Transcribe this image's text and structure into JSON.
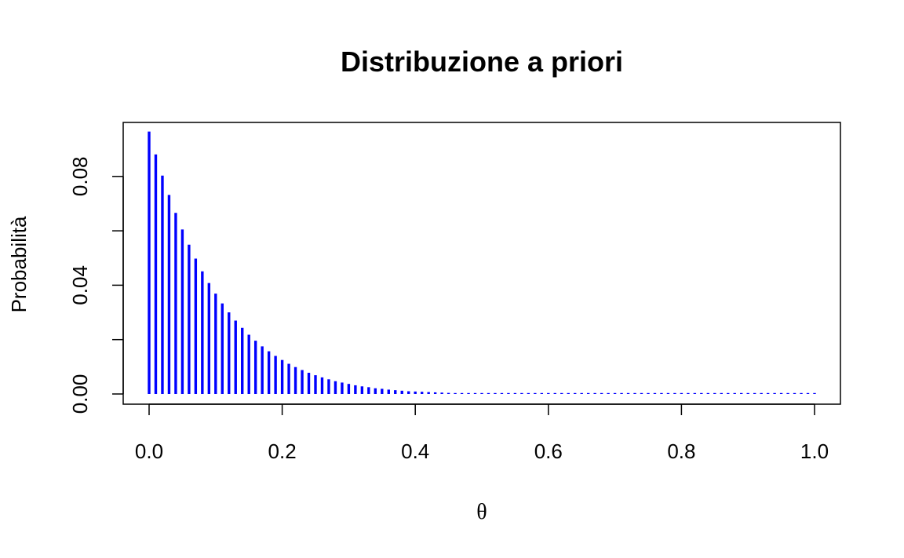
{
  "chart_data": {
    "type": "bar",
    "title": "Distribuzione a priori",
    "xlabel": "θ",
    "ylabel": "Probabilità",
    "xlim": [
      0,
      1
    ],
    "ylim": [
      0,
      0.0968
    ],
    "x_ticks": [
      0.0,
      0.2,
      0.4,
      0.6,
      0.8,
      1.0
    ],
    "x_tick_labels": [
      "0.0",
      "0.2",
      "0.4",
      "0.6",
      "0.8",
      "1.0"
    ],
    "y_ticks": [
      0.0,
      0.02,
      0.04,
      0.06,
      0.08
    ],
    "y_tick_labels": [
      "0.00",
      "",
      "0.04",
      "",
      "0.08"
    ],
    "grid": false,
    "color": "#0000ff",
    "x": [
      0.0,
      0.01,
      0.02,
      0.03,
      0.04,
      0.05,
      0.06,
      0.07,
      0.08,
      0.09,
      0.1,
      0.11,
      0.12,
      0.13,
      0.14,
      0.15,
      0.16,
      0.17,
      0.18,
      0.19,
      0.2,
      0.21,
      0.22,
      0.23,
      0.24,
      0.25,
      0.26,
      0.27,
      0.28,
      0.29,
      0.3,
      0.31,
      0.32,
      0.33,
      0.34,
      0.35,
      0.36,
      0.37,
      0.38,
      0.39,
      0.4,
      0.41,
      0.42,
      0.43,
      0.44,
      0.45,
      0.46,
      0.47,
      0.48,
      0.49,
      0.5,
      0.51,
      0.52,
      0.53,
      0.54,
      0.55,
      0.56,
      0.57,
      0.58,
      0.59,
      0.6,
      0.61,
      0.62,
      0.63,
      0.64,
      0.65,
      0.66,
      0.67,
      0.68,
      0.69,
      0.7,
      0.71,
      0.72,
      0.73,
      0.74,
      0.75,
      0.76,
      0.77,
      0.78,
      0.79,
      0.8,
      0.81,
      0.82,
      0.83,
      0.84,
      0.85,
      0.86,
      0.87,
      0.88,
      0.89,
      0.9,
      0.91,
      0.92,
      0.93,
      0.94,
      0.95,
      0.96,
      0.97,
      0.98,
      0.99,
      1.0
    ],
    "values": [
      0.0965,
      0.0881,
      0.0803,
      0.0732,
      0.0666,
      0.0605,
      0.0549,
      0.0498,
      0.0451,
      0.0408,
      0.0369,
      0.0333,
      0.03,
      0.027,
      0.0243,
      0.0218,
      0.0196,
      0.0175,
      0.0157,
      0.014,
      0.0125,
      0.0111,
      0.0099,
      0.0088,
      0.0078,
      0.0069,
      0.0061,
      0.0054,
      0.0047,
      0.0042,
      0.0037,
      0.0032,
      0.0028,
      0.0025,
      0.0021,
      0.0019,
      0.0016,
      0.0014,
      0.0012,
      0.001,
      0.0009,
      0.0008,
      0.0007,
      0.0006,
      0.0005,
      0.0004,
      0.0003,
      0.0003,
      0.0002,
      0.0002,
      0.0002,
      0.0001,
      0.0001,
      0.0001,
      0.0001,
      0.0001,
      0.0,
      0.0,
      0.0,
      0.0,
      0.0,
      0.0,
      0.0,
      0.0,
      0.0,
      0.0,
      0.0,
      0.0,
      0.0,
      0.0,
      0.0,
      0.0,
      0.0,
      0.0,
      0.0,
      0.0,
      0.0,
      0.0,
      0.0,
      0.0,
      0.0,
      0.0,
      0.0,
      0.0,
      0.0,
      0.0,
      0.0,
      0.0,
      0.0,
      0.0,
      0.0,
      0.0,
      0.0,
      0.0,
      0.0,
      0.0,
      0.0,
      0.0,
      0.0,
      0.0,
      0.0
    ]
  }
}
